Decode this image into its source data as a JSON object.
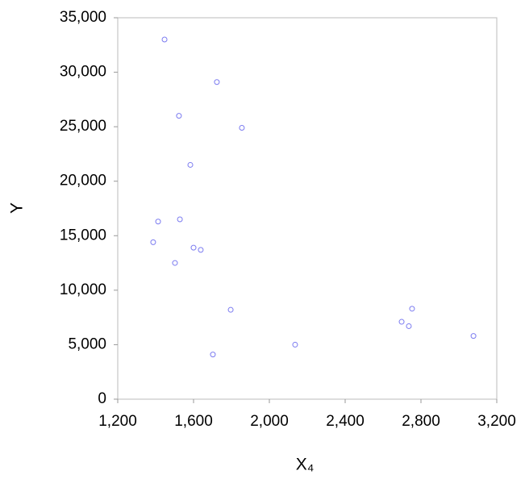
{
  "chart_data": {
    "type": "scatter",
    "x_label": "X₄",
    "y_label": "Y",
    "x": [
      1447,
      1723,
      1523,
      1855,
      1583,
      1413,
      1528,
      1387,
      1600,
      1638,
      1502,
      1796,
      1702,
      2136,
      2698,
      2753,
      2736,
      3077
    ],
    "values": [
      33000,
      29100,
      26000,
      24900,
      21500,
      16300,
      16500,
      14400,
      13900,
      13700,
      12500,
      8200,
      4100,
      5000,
      7100,
      8300,
      6700,
      5800
    ],
    "color": "#7b7bf0",
    "xlim": [
      1200,
      3200
    ],
    "xticks": [
      {
        "value": 1200,
        "label": "1,200"
      },
      {
        "value": 1600,
        "label": "1,600"
      },
      {
        "value": 2000,
        "label": "2,000"
      },
      {
        "value": 2400,
        "label": "2,400"
      },
      {
        "value": 2800,
        "label": "2,800"
      },
      {
        "value": 3200,
        "label": "3,200"
      }
    ],
    "ylim": [
      0,
      35000
    ],
    "yticks": [
      0,
      {
        "value": 5000,
        "label": "5,000"
      },
      {
        "value": 10000,
        "label": "10,000"
      },
      {
        "value": 15000,
        "label": "15,000"
      },
      {
        "value": 20000,
        "label": "20,000"
      },
      {
        "value": 25000,
        "label": "25,000"
      },
      {
        "value": 30000,
        "label": "30,000"
      },
      {
        "value": 35000,
        "label": "35,000"
      }
    ],
    "grid": false
  }
}
